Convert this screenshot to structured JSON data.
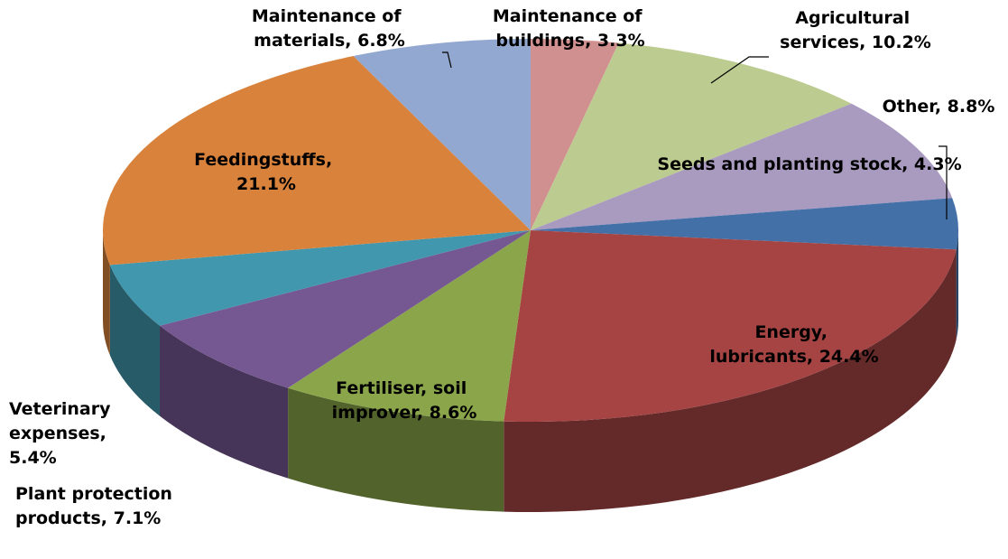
{
  "chart_data": {
    "type": "pie",
    "three_d": true,
    "values": [
      3.3,
      10.2,
      8.8,
      4.3,
      24.4,
      8.6,
      7.1,
      5.4,
      21.1,
      6.8
    ],
    "value_labels": [
      "Maintenance of buildings, 3.3%",
      "Agricultural services, 10.2%",
      "Other, 8.8%",
      "Seeds and planting stock, 4.3%",
      "Energy, lubricants, 24.4%",
      "Fertiliser, soil improver, 8.6%",
      "Plant protection products, 7.1%",
      "Veterinary expenses, 5.4%",
      "Feedingstuffs, 21.1%",
      "Maintenance of materials, 6.8%"
    ],
    "colors": [
      "#d09090",
      "#bccb8f",
      "#a99ac0",
      "#4470a8",
      "#a64444",
      "#8aa54a",
      "#755892",
      "#4197ae",
      "#d9823b",
      "#93a8d0"
    ]
  }
}
